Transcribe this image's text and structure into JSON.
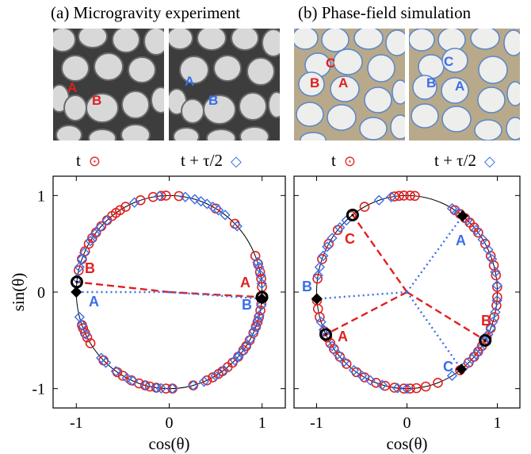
{
  "panels": {
    "a": {
      "title": "(a) Microgravity experiment"
    },
    "b": {
      "title": "(b) Phase-field simulation"
    }
  },
  "photos": {
    "a1": {
      "labels": [
        "A",
        "B"
      ],
      "label_color": "#e02020"
    },
    "a2": {
      "labels": [
        "A",
        "B"
      ],
      "label_color": "#3a6ee8"
    },
    "b1": {
      "labels": [
        "C",
        "B",
        "A"
      ],
      "label_color": "#e02020"
    },
    "b2": {
      "labels": [
        "C",
        "B",
        "A"
      ],
      "label_color": "#3a6ee8"
    }
  },
  "legend": {
    "t": "t",
    "t_half": "t + τ/2",
    "t_symbol": "⊙",
    "t_half_symbol": "◇"
  },
  "colors": {
    "red": "#e02020",
    "blue": "#3a6ee8",
    "black": "#000000"
  },
  "chart_data": [
    {
      "type": "scatter",
      "panel": "a",
      "xlabel": "cos(θ)",
      "ylabel": "sin(θ)",
      "xlim": [
        -1.25,
        1.25
      ],
      "ylim": [
        -1.2,
        1.2
      ],
      "xticks": [
        "-1",
        "0",
        "1"
      ],
      "yticks": [
        "1",
        "0",
        "-1"
      ],
      "xtick_values": [
        -1,
        0,
        1
      ],
      "ytick_values": [
        1,
        0,
        -1
      ],
      "series": [
        {
          "marker": "circle",
          "color": "red",
          "angles_deg": [
            3,
            8,
            12,
            17,
            22,
            45,
            60,
            84,
            92,
            95,
            100,
            108,
            118,
            122,
            125,
            128,
            132,
            137,
            142,
            146,
            150,
            155,
            160,
            167,
            200,
            202,
            205,
            208,
            212,
            225,
            236,
            240,
            246,
            251,
            255,
            258,
            262,
            268,
            272,
            285,
            294,
            298,
            302,
            305,
            309,
            313,
            318,
            323,
            326,
            330,
            335,
            339,
            342,
            345,
            349,
            353,
            357
          ]
        },
        {
          "marker": "diamond",
          "color": "blue",
          "angles_deg": [
            5,
            10,
            15,
            18,
            43,
            53,
            58,
            62,
            66,
            70,
            74,
            80,
            96,
            112,
            132,
            138,
            143,
            148,
            156,
            160,
            165,
            172,
            195,
            200,
            206,
            223,
            227,
            235,
            243,
            247,
            255,
            262,
            265,
            272,
            285,
            292,
            300,
            306,
            315,
            318,
            321,
            326,
            331,
            336,
            339,
            343,
            346,
            352,
            356
          ]
        }
      ],
      "highlight_circles_deg": [
        174,
        357
      ],
      "highlight_diamonds_deg": [
        180,
        356
      ],
      "lines": [
        {
          "style": "dashed",
          "color": "red",
          "angle_deg": 174
        },
        {
          "style": "dashed",
          "color": "red",
          "angle_deg": 357
        },
        {
          "style": "dotted",
          "color": "blue",
          "angle_deg": 180
        },
        {
          "style": "dotted",
          "color": "blue",
          "angle_deg": 356
        }
      ],
      "annotations": [
        {
          "text": "B",
          "color": "red"
        },
        {
          "text": "A",
          "color": "blue"
        },
        {
          "text": "A",
          "color": "red"
        },
        {
          "text": "B",
          "color": "blue"
        }
      ]
    },
    {
      "type": "scatter",
      "panel": "b",
      "xlabel": "cos(θ)",
      "ylabel": "",
      "xlim": [
        -1.25,
        1.25
      ],
      "ylim": [
        -1.2,
        1.2
      ],
      "xticks": [
        "-1",
        "0",
        "1"
      ],
      "yticks": [],
      "xtick_values": [
        -1,
        0,
        1
      ],
      "series": [
        {
          "marker": "circle",
          "color": "red",
          "angles_deg": [
            3,
            10,
            16,
            22,
            30,
            38,
            42,
            46,
            50,
            54,
            58,
            85,
            88,
            92,
            95,
            98,
            118,
            128,
            140,
            150,
            160,
            172,
            185,
            190,
            195,
            204,
            208,
            212,
            216,
            222,
            228,
            236,
            242,
            250,
            256,
            262,
            268,
            272,
            276,
            282,
            290,
            306,
            313,
            318,
            322,
            326,
            332,
            338,
            345,
            352,
            357
          ]
        },
        {
          "marker": "diamond",
          "color": "blue",
          "angles_deg": [
            4,
            12,
            20,
            26,
            33,
            40,
            48,
            55,
            60,
            100,
            108,
            132,
            138,
            146,
            152,
            158,
            165,
            170,
            198,
            203,
            207,
            214,
            220,
            226,
            234,
            240,
            246,
            254,
            264,
            270,
            300,
            310,
            316,
            320,
            324,
            329,
            334,
            338,
            342,
            348,
            355
          ]
        }
      ],
      "highlight_circles_deg": [
        127,
        206,
        330
      ],
      "highlight_diamonds_deg": [
        52,
        184,
        307
      ],
      "lines": [
        {
          "style": "dashed",
          "color": "red",
          "angle_deg": 127
        },
        {
          "style": "dashed",
          "color": "red",
          "angle_deg": 206
        },
        {
          "style": "dashed",
          "color": "red",
          "angle_deg": 330
        },
        {
          "style": "dotted",
          "color": "blue",
          "angle_deg": 52
        },
        {
          "style": "dotted",
          "color": "blue",
          "angle_deg": 184
        },
        {
          "style": "dotted",
          "color": "blue",
          "angle_deg": 307
        }
      ],
      "annotations": [
        {
          "text": "C",
          "color": "red"
        },
        {
          "text": "A",
          "color": "blue"
        },
        {
          "text": "B",
          "color": "blue"
        },
        {
          "text": "A",
          "color": "red"
        },
        {
          "text": "B",
          "color": "red"
        },
        {
          "text": "C",
          "color": "blue"
        }
      ]
    }
  ]
}
